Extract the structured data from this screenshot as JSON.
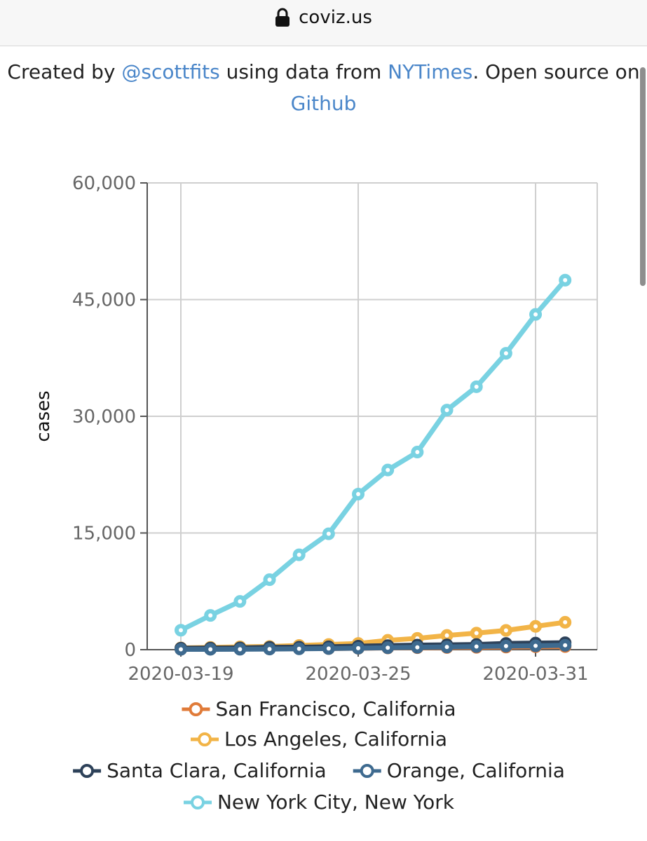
{
  "browser": {
    "url": "coviz.us",
    "lock_icon": "lock-icon"
  },
  "credits": {
    "t1": "Created by ",
    "author": "@scottfits",
    "t2": " using data from ",
    "source": "NYTimes",
    "t3": ". Open source on ",
    "repo": "Github"
  },
  "chart_data": {
    "type": "line",
    "title": "",
    "xlabel": "",
    "ylabel": "cases",
    "x": [
      "2020-03-19",
      "2020-03-20",
      "2020-03-21",
      "2020-03-22",
      "2020-03-23",
      "2020-03-24",
      "2020-03-25",
      "2020-03-26",
      "2020-03-27",
      "2020-03-28",
      "2020-03-29",
      "2020-03-30",
      "2020-03-31",
      "2020-04-01"
    ],
    "x_ticks": [
      "2020-03-19",
      "2020-03-25",
      "2020-03-31"
    ],
    "y_ticks": [
      0,
      15000,
      30000,
      45000,
      60000
    ],
    "y_tick_labels": [
      "0",
      "15,000",
      "30,000",
      "45,000",
      "60,000"
    ],
    "ylim": [
      0,
      60000
    ],
    "grid": true,
    "legend_position": "bottom",
    "series": [
      {
        "name": "San Francisco, California",
        "color": "#e07b39",
        "values": [
          60,
          80,
          100,
          110,
          130,
          150,
          180,
          220,
          260,
          280,
          300,
          340,
          380,
          400
        ]
      },
      {
        "name": "Los Angeles, California",
        "color": "#f2b447",
        "values": [
          230,
          290,
          360,
          410,
          540,
          660,
          800,
          1200,
          1450,
          1830,
          2130,
          2480,
          3000,
          3520
        ]
      },
      {
        "name": "Santa Clara, California",
        "color": "#2d4159",
        "values": [
          190,
          200,
          230,
          300,
          320,
          370,
          450,
          520,
          580,
          620,
          660,
          800,
          850,
          890
        ]
      },
      {
        "name": "Orange, California",
        "color": "#3e6a8f",
        "values": [
          40,
          50,
          60,
          80,
          110,
          150,
          190,
          250,
          300,
          350,
          400,
          460,
          500,
          560
        ]
      },
      {
        "name": "New York City, New York",
        "color": "#79d2e2",
        "values": [
          2500,
          4400,
          6200,
          9000,
          12200,
          14900,
          20000,
          23100,
          25400,
          30800,
          33800,
          38100,
          43100,
          47500
        ]
      }
    ]
  }
}
